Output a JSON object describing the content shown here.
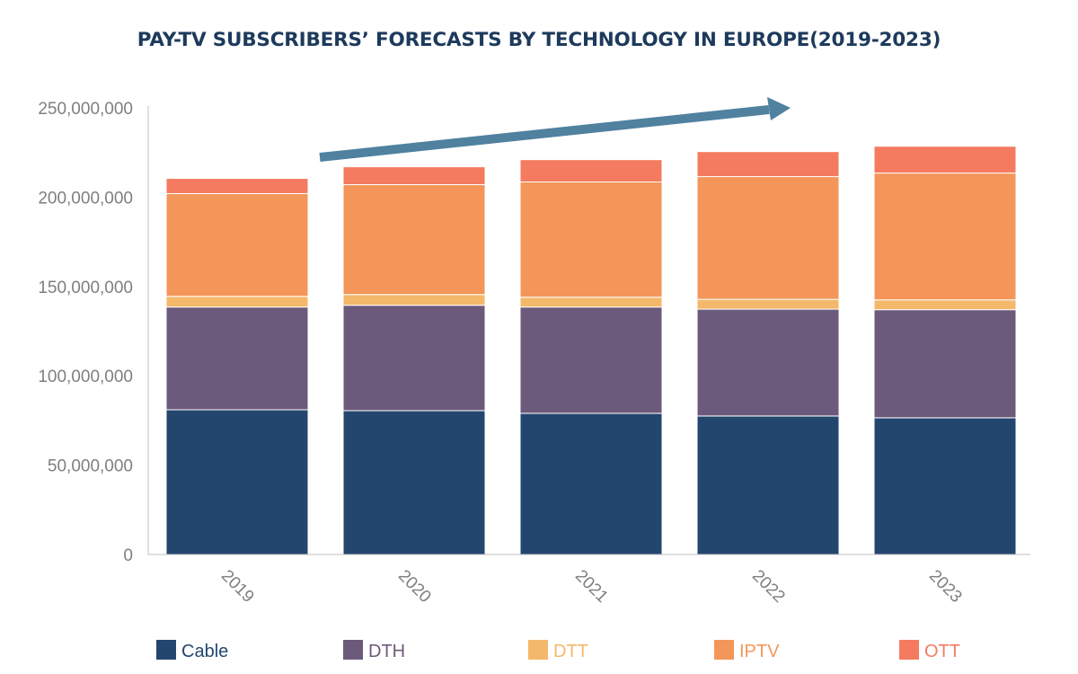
{
  "chart_data": {
    "type": "bar",
    "stacked": true,
    "title": "PAY-TV SUBSCRIBERS’ FORECASTS BY TECHNOLOGY IN EUROPE(2019-2023)",
    "xlabel": "",
    "ylabel": "",
    "categories": [
      "2019",
      "2020",
      "2021",
      "2022",
      "2023"
    ],
    "ylim": [
      0,
      250000000
    ],
    "yticks": [
      0,
      50000000,
      100000000,
      150000000,
      200000000,
      250000000
    ],
    "ytick_labels": [
      "0",
      "50,000,000",
      "100,000,000",
      "150,000,000",
      "200,000,000",
      "250,000,000"
    ],
    "legend_position": "bottom",
    "grid": false,
    "annotation": "upward trend arrow",
    "series": [
      {
        "name": "Cable",
        "color": "#23466f",
        "values": [
          81000000,
          80500000,
          79000000,
          77500000,
          76500000
        ]
      },
      {
        "name": "DTH",
        "color": "#6c5a7c",
        "values": [
          57500000,
          59000000,
          59500000,
          59800000,
          60500000
        ]
      },
      {
        "name": "DTT",
        "color": "#f4b86a",
        "values": [
          6000000,
          6000000,
          5500000,
          5500000,
          5500000
        ]
      },
      {
        "name": "IPTV",
        "color": "#f4965a",
        "values": [
          57500000,
          61500000,
          64500000,
          68700000,
          71000000
        ]
      },
      {
        "name": "OTT",
        "color": "#f47b60",
        "values": [
          8500000,
          10000000,
          12500000,
          14000000,
          15000000
        ]
      }
    ]
  }
}
